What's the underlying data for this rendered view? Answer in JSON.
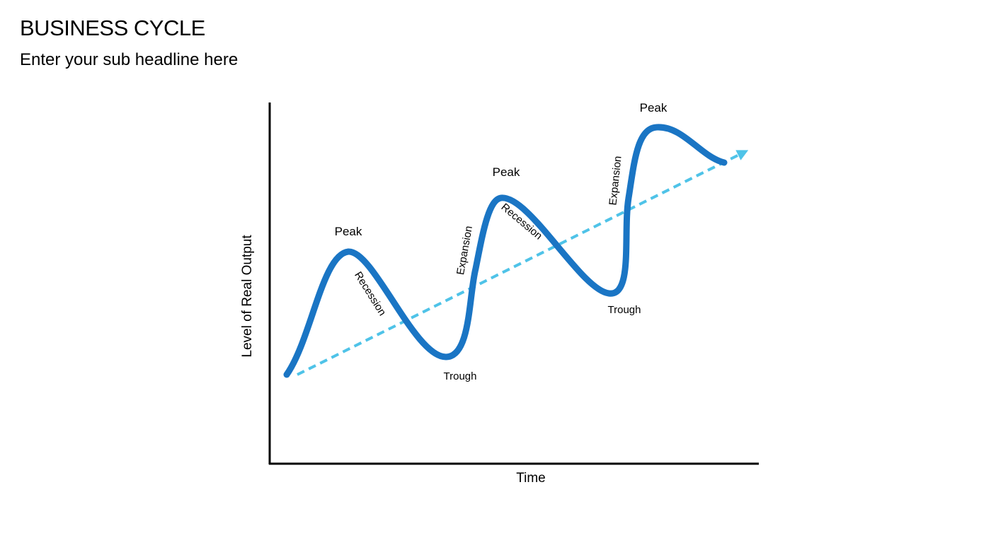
{
  "slide": {
    "title": "BUSINESS CYCLE",
    "subtitle": "Enter your sub headline here"
  },
  "diagram": {
    "y_axis_label": "Level of Real Output",
    "x_axis_label": "Time",
    "phases": {
      "peak_1": "Peak",
      "peak_2": "Peak",
      "peak_3": "Peak",
      "trough_1": "Trough",
      "trough_2": "Trough",
      "recession_1": "Recession",
      "recession_2": "Recession",
      "expansion_1": "Expansion",
      "expansion_2": "Expansion"
    },
    "colors": {
      "cycle_curve": "#1a75c4",
      "trend_line": "#4fc3e8",
      "axis": "#000000"
    }
  }
}
